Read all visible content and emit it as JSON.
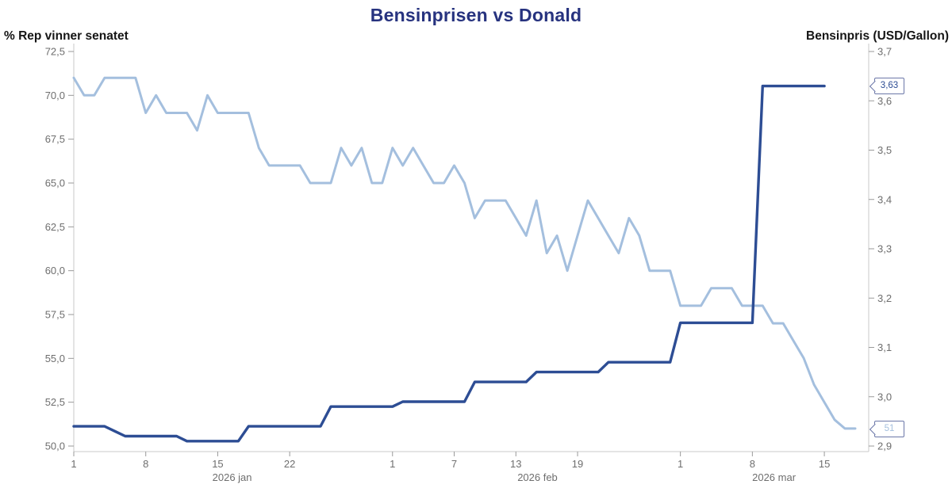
{
  "header": {
    "title": "Bensinprisen vs Donald",
    "left_axis_title": "% Rep vinner senatet",
    "right_axis_title": "Bensinpris (USD/Gallon)"
  },
  "badges": {
    "bensinpris": "3,63",
    "rep": "51"
  },
  "colors": {
    "title": "#27337f",
    "rep_line": "#a4bfde",
    "bensinpris_line": "#2d4d94",
    "tick_text": "#6e6e6e",
    "axis_line": "#c9c9c9",
    "tick_mark": "#9a9a9a"
  },
  "chart_data": {
    "type": "line",
    "title": "Bensinprisen vs Donald",
    "x_unit": "day",
    "x_start": "2026-01-01",
    "grid": false,
    "legend": "none",
    "left_axis": {
      "label": "% Rep vinner senatet",
      "range": [
        50.0,
        72.5
      ],
      "ticks": [
        {
          "value": 50.0,
          "label": "50,0"
        },
        {
          "value": 52.5,
          "label": "52,5"
        },
        {
          "value": 55.0,
          "label": "55,0"
        },
        {
          "value": 57.5,
          "label": "57,5"
        },
        {
          "value": 60.0,
          "label": "60,0"
        },
        {
          "value": 62.5,
          "label": "62,5"
        },
        {
          "value": 65.0,
          "label": "65,0"
        },
        {
          "value": 67.5,
          "label": "67,5"
        },
        {
          "value": 70.0,
          "label": "70,0"
        },
        {
          "value": 72.5,
          "label": "72,5"
        }
      ]
    },
    "right_axis": {
      "label": "Bensinpris (USD/Gallon)",
      "range": [
        2.9,
        3.7
      ],
      "ticks": [
        {
          "value": 2.9,
          "label": "2,9"
        },
        {
          "value": 3.0,
          "label": "3,0"
        },
        {
          "value": 3.1,
          "label": "3,1"
        },
        {
          "value": 3.2,
          "label": "3,2"
        },
        {
          "value": 3.3,
          "label": "3,3"
        },
        {
          "value": 3.4,
          "label": "3,4"
        },
        {
          "value": 3.5,
          "label": "3,5"
        },
        {
          "value": 3.6,
          "label": "3,6"
        },
        {
          "value": 3.7,
          "label": "3,7"
        }
      ]
    },
    "x_ticks": [
      {
        "day": 0,
        "label": "1"
      },
      {
        "day": 7,
        "label": "8"
      },
      {
        "day": 14,
        "label": "15"
      },
      {
        "day": 21,
        "label": "22"
      },
      {
        "day": 31,
        "label": "1"
      },
      {
        "day": 37,
        "label": "7"
      },
      {
        "day": 43,
        "label": "13"
      },
      {
        "day": 49,
        "label": "19"
      },
      {
        "day": 59,
        "label": "1"
      },
      {
        "day": 66,
        "label": "8"
      },
      {
        "day": 73,
        "label": "15"
      }
    ],
    "month_labels": [
      {
        "day": 15.4,
        "label": "2026 jan"
      },
      {
        "day": 45.1,
        "label": "2026 feb"
      },
      {
        "day": 68.1,
        "label": "2026 mar"
      }
    ],
    "series": [
      {
        "name": "% Rep vinner senatet",
        "axis": "left",
        "color": "#a4bfde",
        "width": 3,
        "last_value_label": "51",
        "values": [
          71,
          70,
          70,
          71,
          71,
          71,
          71,
          69,
          70,
          69,
          69,
          69,
          68,
          70,
          69,
          69,
          69,
          69,
          67,
          66,
          66,
          66,
          66,
          65,
          65,
          65,
          67,
          66,
          67,
          65,
          65,
          67,
          66,
          67,
          66,
          65,
          65,
          66,
          65,
          63,
          64,
          64,
          64,
          63,
          62,
          64,
          61,
          62,
          60,
          62,
          64,
          63,
          62,
          61,
          63,
          62,
          60,
          60,
          60,
          58,
          58,
          58,
          59,
          59,
          59,
          58,
          58,
          58,
          57,
          57,
          56,
          55,
          53.5,
          52.5,
          51.5,
          51,
          51
        ]
      },
      {
        "name": "Bensinpris (USD/Gallon)",
        "axis": "right",
        "color": "#2d4d94",
        "width": 3.4,
        "last_value_label": "3,63",
        "values": [
          2.94,
          2.94,
          2.94,
          2.94,
          2.93,
          2.92,
          2.92,
          2.92,
          2.92,
          2.92,
          2.92,
          2.91,
          2.91,
          2.91,
          2.91,
          2.91,
          2.91,
          2.94,
          2.94,
          2.94,
          2.94,
          2.94,
          2.94,
          2.94,
          2.94,
          2.98,
          2.98,
          2.98,
          2.98,
          2.98,
          2.98,
          2.98,
          2.99,
          2.99,
          2.99,
          2.99,
          2.99,
          2.99,
          2.99,
          3.03,
          3.03,
          3.03,
          3.03,
          3.03,
          3.03,
          3.05,
          3.05,
          3.05,
          3.05,
          3.05,
          3.05,
          3.05,
          3.07,
          3.07,
          3.07,
          3.07,
          3.07,
          3.07,
          3.07,
          3.15,
          3.15,
          3.15,
          3.15,
          3.15,
          3.15,
          3.15,
          3.15,
          3.63,
          3.63,
          3.63,
          3.63,
          3.63,
          3.63,
          3.63
        ]
      }
    ]
  }
}
